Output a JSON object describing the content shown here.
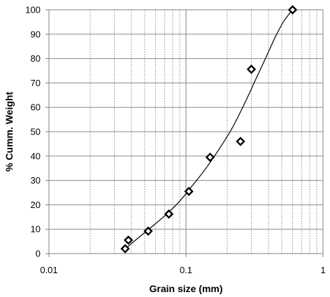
{
  "chart_data": {
    "type": "scatter",
    "title": "",
    "xlabel": "Grain size (mm)",
    "ylabel": "% Cumm. Weight",
    "xscale": "log",
    "xlim": [
      0.01,
      1
    ],
    "ylim": [
      0,
      100
    ],
    "grid": "vertical log gridlines (solid at decades, dotted at minors)",
    "x_tick_labels": [
      "0.01",
      "0.1",
      "1"
    ],
    "y_tick_labels": [
      "0",
      "10",
      "20",
      "30",
      "40",
      "50",
      "60",
      "70",
      "80",
      "90",
      "100"
    ],
    "marker": "diamond",
    "series": [
      {
        "points": [
          {
            "x": 0.036,
            "y": 2
          },
          {
            "x": 0.038,
            "y": 5.5
          },
          {
            "x": 0.053,
            "y": 9.2
          },
          {
            "x": 0.075,
            "y": 16.2
          },
          {
            "x": 0.105,
            "y": 25.5
          },
          {
            "x": 0.15,
            "y": 39.5
          },
          {
            "x": 0.25,
            "y": 46
          },
          {
            "x": 0.3,
            "y": 75.6
          },
          {
            "x": 0.6,
            "y": 100
          }
        ]
      }
    ],
    "fit_curve": [
      {
        "x": 0.037,
        "y": 2.5
      },
      {
        "x": 0.045,
        "y": 6.5
      },
      {
        "x": 0.055,
        "y": 10.5
      },
      {
        "x": 0.07,
        "y": 15.5
      },
      {
        "x": 0.09,
        "y": 21.5
      },
      {
        "x": 0.11,
        "y": 27.5
      },
      {
        "x": 0.14,
        "y": 35
      },
      {
        "x": 0.18,
        "y": 44
      },
      {
        "x": 0.22,
        "y": 52
      },
      {
        "x": 0.27,
        "y": 62
      },
      {
        "x": 0.32,
        "y": 71
      },
      {
        "x": 0.38,
        "y": 80
      },
      {
        "x": 0.45,
        "y": 89
      },
      {
        "x": 0.52,
        "y": 95.5
      },
      {
        "x": 0.6,
        "y": 100
      }
    ]
  }
}
